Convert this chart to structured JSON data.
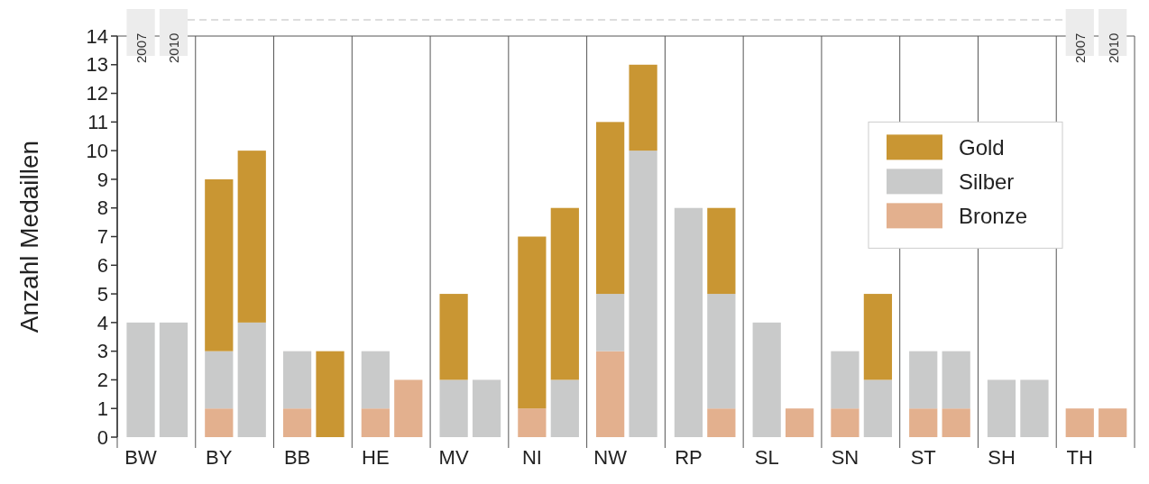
{
  "chart_data": {
    "type": "bar",
    "stacked": true,
    "ylabel": "Anzahl Medaillen",
    "categories": [
      "BW",
      null,
      "BY",
      null,
      "BB",
      null,
      "HE",
      null,
      "MV",
      null,
      "NI",
      null,
      "NW",
      null,
      "RP",
      null,
      "SL",
      null,
      "SN",
      null,
      "ST",
      null,
      "SH",
      null,
      "TH",
      null
    ],
    "series": [
      {
        "name": "Bronze",
        "color": "#e3b08e",
        "values": [
          0,
          0,
          1,
          0,
          1,
          0,
          1,
          2,
          0,
          0,
          1,
          0,
          3,
          0,
          0,
          1,
          0,
          1,
          1,
          0,
          1,
          1,
          0,
          0,
          1,
          1
        ]
      },
      {
        "name": "Silber",
        "color": "#c9caca",
        "values": [
          4,
          4,
          2,
          4,
          2,
          0,
          2,
          0,
          2,
          2,
          0,
          2,
          2,
          10,
          8,
          4,
          4,
          0,
          2,
          2,
          2,
          2,
          2,
          2,
          0,
          0
        ]
      },
      {
        "name": "Gold",
        "color": "#c99633",
        "values": [
          0,
          0,
          6,
          6,
          0,
          3,
          0,
          0,
          3,
          0,
          6,
          6,
          6,
          3,
          0,
          3,
          0,
          0,
          0,
          3,
          0,
          0,
          0,
          0,
          0,
          0
        ]
      }
    ],
    "annotations": [
      "2007",
      "2010"
    ],
    "ylim": [
      0,
      14
    ],
    "yticks": [
      0,
      1,
      2,
      3,
      4,
      5,
      6,
      7,
      8,
      9,
      10,
      11,
      12,
      13,
      14
    ],
    "grid": "x",
    "legend": "top right"
  }
}
